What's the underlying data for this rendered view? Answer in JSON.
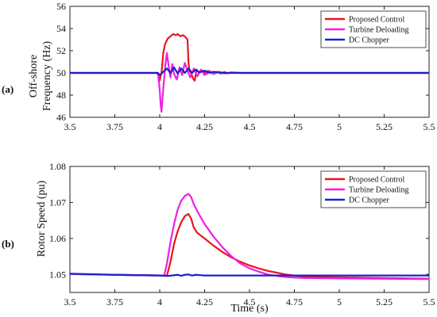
{
  "chart_data": [
    {
      "type": "line",
      "panel_label": "(a)",
      "ylabel_lines": [
        "Off-shore",
        "Frequency (Hz)"
      ],
      "xlabel": "",
      "xlim": [
        3.5,
        5.5
      ],
      "ylim": [
        46,
        56
      ],
      "xticks": [
        "3.5",
        "3.75",
        "4",
        "4.25",
        "4.5",
        "4.75",
        "5",
        "5.25",
        "5.5"
      ],
      "yticks": [
        "46",
        "48",
        "50",
        "52",
        "54",
        "56"
      ],
      "legend_position": "top-right",
      "grid": false,
      "series": [
        {
          "name": "Proposed Control",
          "color": "#e8161b",
          "points": [
            [
              3.5,
              50.0
            ],
            [
              3.98,
              50.0
            ],
            [
              3.99,
              49.9
            ],
            [
              4.0,
              49.3
            ],
            [
              4.005,
              49.7
            ],
            [
              4.01,
              50.0
            ],
            [
              4.02,
              51.8
            ],
            [
              4.03,
              52.6
            ],
            [
              4.045,
              53.1
            ],
            [
              4.06,
              53.3
            ],
            [
              4.075,
              53.5
            ],
            [
              4.09,
              53.4
            ],
            [
              4.1,
              53.5
            ],
            [
              4.115,
              53.3
            ],
            [
              4.13,
              53.4
            ],
            [
              4.145,
              53.2
            ],
            [
              4.155,
              53.0
            ],
            [
              4.16,
              51.0
            ],
            [
              4.165,
              50.2
            ],
            [
              4.175,
              50.0
            ],
            [
              4.185,
              49.5
            ],
            [
              4.195,
              49.3
            ],
            [
              4.205,
              50.3
            ],
            [
              4.22,
              50.0
            ],
            [
              4.24,
              50.2
            ],
            [
              4.26,
              49.9
            ],
            [
              4.28,
              50.15
            ],
            [
              4.3,
              49.9
            ],
            [
              4.32,
              50.1
            ],
            [
              4.34,
              49.95
            ],
            [
              4.36,
              50.08
            ],
            [
              4.38,
              49.96
            ],
            [
              4.4,
              50.05
            ],
            [
              4.45,
              50.0
            ],
            [
              5.5,
              50.0
            ]
          ]
        },
        {
          "name": "Turbine Deloading",
          "color": "#ee1ee8",
          "points": [
            [
              3.5,
              50.0
            ],
            [
              3.99,
              50.0
            ],
            [
              4.0,
              48.5
            ],
            [
              4.005,
              47.2
            ],
            [
              4.01,
              46.5
            ],
            [
              4.02,
              48.6
            ],
            [
              4.03,
              50.5
            ],
            [
              4.04,
              51.8
            ],
            [
              4.05,
              50.6
            ],
            [
              4.06,
              49.6
            ],
            [
              4.07,
              50.8
            ],
            [
              4.08,
              49.9
            ],
            [
              4.095,
              49.4
            ],
            [
              4.11,
              50.5
            ],
            [
              4.125,
              49.8
            ],
            [
              4.14,
              50.9
            ],
            [
              4.155,
              50.2
            ],
            [
              4.17,
              49.6
            ],
            [
              4.19,
              50.4
            ],
            [
              4.21,
              49.7
            ],
            [
              4.23,
              50.3
            ],
            [
              4.25,
              49.8
            ],
            [
              4.27,
              50.2
            ],
            [
              4.3,
              49.9
            ],
            [
              4.33,
              50.1
            ],
            [
              4.36,
              49.95
            ],
            [
              4.4,
              50.05
            ],
            [
              4.45,
              50.0
            ],
            [
              5.5,
              50.0
            ]
          ]
        },
        {
          "name": "DC Chopper",
          "color": "#1a23c9",
          "points": [
            [
              3.5,
              50.0
            ],
            [
              3.99,
              50.0
            ],
            [
              4.0,
              49.8
            ],
            [
              4.01,
              49.95
            ],
            [
              4.02,
              50.1
            ],
            [
              4.04,
              50.4
            ],
            [
              4.06,
              50.0
            ],
            [
              4.08,
              50.5
            ],
            [
              4.1,
              49.95
            ],
            [
              4.12,
              50.4
            ],
            [
              4.14,
              50.0
            ],
            [
              4.16,
              50.4
            ],
            [
              4.18,
              50.0
            ],
            [
              4.2,
              50.3
            ],
            [
              4.22,
              50.05
            ],
            [
              4.25,
              50.2
            ],
            [
              4.28,
              50.0
            ],
            [
              4.3,
              50.1
            ],
            [
              4.35,
              50.0
            ],
            [
              5.5,
              50.0
            ]
          ]
        }
      ]
    },
    {
      "type": "line",
      "panel_label": "(b)",
      "ylabel_lines": [
        "Rotor Speed (pu)"
      ],
      "xlabel": "Time (s)",
      "xlim": [
        3.5,
        5.5
      ],
      "ylim": [
        1.045,
        1.08
      ],
      "xticks": [
        "3.5",
        "3.75",
        "4",
        "4.25",
        "4.5",
        "4.75",
        "5",
        "5.25",
        "5.5"
      ],
      "yticks": [
        "1.05",
        "1.06",
        "1.07",
        "1.08"
      ],
      "legend_position": "top-right",
      "grid": false,
      "series": [
        {
          "name": "Proposed Control",
          "color": "#e8161b",
          "points": [
            [
              3.5,
              1.0501
            ],
            [
              3.75,
              1.0499
            ],
            [
              4.0,
              1.0497
            ],
            [
              4.04,
              1.0496
            ],
            [
              4.06,
              1.0535
            ],
            [
              4.08,
              1.0585
            ],
            [
              4.1,
              1.062
            ],
            [
              4.12,
              1.0645
            ],
            [
              4.14,
              1.0662
            ],
            [
              4.16,
              1.0668
            ],
            [
              4.175,
              1.0655
            ],
            [
              4.19,
              1.063
            ],
            [
              4.21,
              1.0615
            ],
            [
              4.25,
              1.06
            ],
            [
              4.3,
              1.058
            ],
            [
              4.35,
              1.0562
            ],
            [
              4.4,
              1.0547
            ],
            [
              4.45,
              1.0535
            ],
            [
              4.5,
              1.0525
            ],
            [
              4.55,
              1.0517
            ],
            [
              4.6,
              1.051
            ],
            [
              4.65,
              1.0505
            ],
            [
              4.7,
              1.05
            ],
            [
              4.75,
              1.0497
            ],
            [
              4.8,
              1.0494
            ],
            [
              5.0,
              1.0492
            ],
            [
              5.25,
              1.049
            ],
            [
              5.5,
              1.0488
            ]
          ]
        },
        {
          "name": "Turbine Deloading",
          "color": "#ee1ee8",
          "points": [
            [
              3.5,
              1.0501
            ],
            [
              3.75,
              1.0499
            ],
            [
              4.0,
              1.0497
            ],
            [
              4.025,
              1.0496
            ],
            [
              4.04,
              1.053
            ],
            [
              4.06,
              1.059
            ],
            [
              4.08,
              1.064
            ],
            [
              4.1,
              1.068
            ],
            [
              4.12,
              1.0705
            ],
            [
              4.14,
              1.0718
            ],
            [
              4.16,
              1.0724
            ],
            [
              4.175,
              1.0715
            ],
            [
              4.19,
              1.0695
            ],
            [
              4.21,
              1.0675
            ],
            [
              4.25,
              1.064
            ],
            [
              4.3,
              1.0605
            ],
            [
              4.35,
              1.0575
            ],
            [
              4.4,
              1.055
            ],
            [
              4.45,
              1.053
            ],
            [
              4.5,
              1.0517
            ],
            [
              4.55,
              1.0508
            ],
            [
              4.6,
              1.05
            ],
            [
              4.65,
              1.0496
            ],
            [
              4.7,
              1.0493
            ],
            [
              4.8,
              1.049
            ],
            [
              5.0,
              1.0489
            ],
            [
              5.25,
              1.0488
            ],
            [
              5.5,
              1.0487
            ]
          ]
        },
        {
          "name": "DC Chopper",
          "color": "#1a23c9",
          "points": [
            [
              3.5,
              1.0502
            ],
            [
              3.75,
              1.0499
            ],
            [
              4.0,
              1.0497
            ],
            [
              4.05,
              1.0496
            ],
            [
              4.1,
              1.0499
            ],
            [
              4.12,
              1.0496
            ],
            [
              4.14,
              1.0499
            ],
            [
              4.16,
              1.05
            ],
            [
              4.18,
              1.0497
            ],
            [
              4.2,
              1.0499
            ],
            [
              4.25,
              1.0497
            ],
            [
              4.5,
              1.0497
            ],
            [
              4.75,
              1.0497
            ],
            [
              5.0,
              1.0497
            ],
            [
              5.25,
              1.0497
            ],
            [
              5.5,
              1.0497
            ]
          ]
        }
      ]
    }
  ]
}
